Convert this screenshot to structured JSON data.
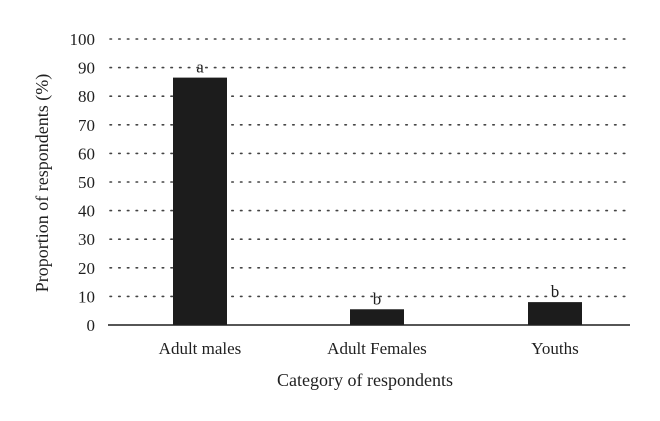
{
  "chart_data": {
    "type": "bar",
    "categories": [
      "Adult males",
      "Adult Females",
      "Youths"
    ],
    "values": [
      86.5,
      5.5,
      8
    ],
    "data_labels": [
      "a",
      "b",
      "b"
    ],
    "xlabel": "Category of respondents",
    "ylabel": "Proportion of respondents (%)",
    "ylim": [
      0,
      100
    ],
    "yticks": [
      0,
      10,
      20,
      30,
      40,
      50,
      60,
      70,
      80,
      90,
      100
    ],
    "grid": true,
    "bar_color": "#1c1c1c"
  }
}
